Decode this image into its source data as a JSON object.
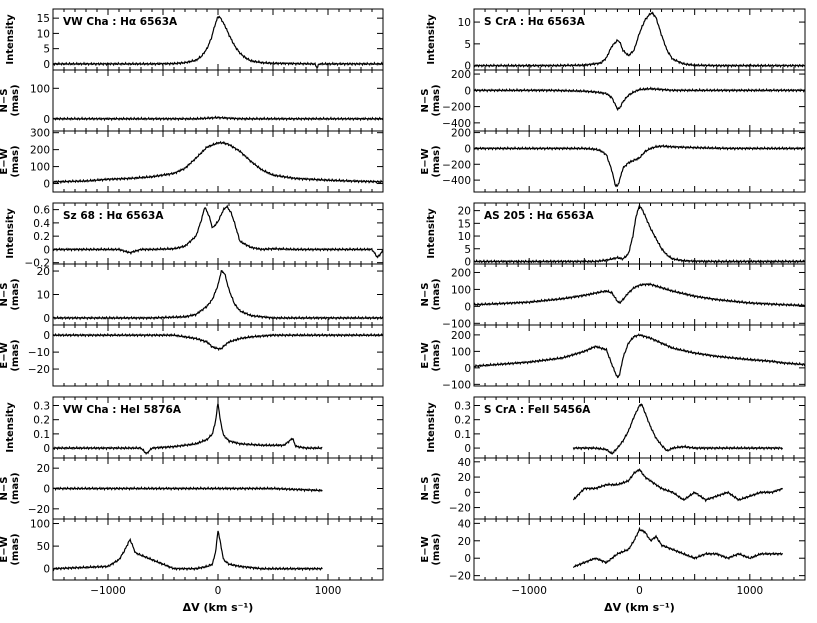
{
  "figure": {
    "xlabel": "ΔV (km s⁻¹)",
    "xlim": [
      -1500,
      1500
    ],
    "xticks": [
      -1000,
      0,
      1000
    ],
    "xtick_labels": [
      "−1000",
      "0",
      "1000"
    ]
  },
  "chart_data": [
    {
      "type": "line",
      "title": "VW Cha : Hα 6563A",
      "panels": [
        {
          "ylabel": "Intensity",
          "ylim": [
            -2,
            18
          ],
          "yticks": [
            0,
            5,
            10,
            15
          ],
          "x": [
            -1500,
            -1000,
            -600,
            -400,
            -300,
            -200,
            -150,
            -100,
            -60,
            -30,
            0,
            20,
            40,
            70,
            100,
            150,
            200,
            250,
            300,
            400,
            500,
            700,
            880,
            900,
            920,
            1000,
            1200,
            1500
          ],
          "y": [
            0,
            0,
            0,
            0.1,
            0.4,
            1.2,
            2.5,
            5,
            8.5,
            12.5,
            15.5,
            15.2,
            14,
            12,
            9.5,
            6,
            3.5,
            2,
            1,
            0.4,
            0.2,
            0.1,
            0,
            -1.2,
            0,
            0,
            0,
            0
          ]
        },
        {
          "ylabel": "N−S\n(mas)",
          "ylim": [
            -40,
            160
          ],
          "yticks": [
            0,
            100
          ],
          "x": [
            -1500,
            -1200,
            -800,
            -400,
            -200,
            0,
            200,
            400,
            800,
            1200,
            1500
          ],
          "y": [
            0,
            0,
            0,
            0,
            0,
            4,
            0,
            0,
            0,
            0,
            0
          ]
        },
        {
          "ylabel": "E−W\n(mas)",
          "ylim": [
            -50,
            310
          ],
          "yticks": [
            0,
            100,
            200,
            300
          ],
          "x": [
            -1500,
            -1200,
            -1000,
            -800,
            -600,
            -400,
            -300,
            -200,
            -100,
            0,
            50,
            100,
            200,
            300,
            400,
            500,
            700,
            1000,
            1200,
            1500
          ],
          "y": [
            10,
            15,
            25,
            30,
            40,
            60,
            90,
            150,
            215,
            240,
            240,
            230,
            190,
            130,
            80,
            50,
            30,
            20,
            15,
            10
          ]
        }
      ]
    },
    {
      "type": "line",
      "title": "S CrA : Hα 6563A",
      "panels": [
        {
          "ylabel": "Intensity",
          "ylim": [
            -1,
            13
          ],
          "yticks": [
            0,
            5,
            10
          ],
          "x": [
            -1500,
            -800,
            -500,
            -350,
            -300,
            -250,
            -200,
            -180,
            -150,
            -100,
            -50,
            0,
            50,
            100,
            120,
            150,
            200,
            250,
            300,
            400,
            500,
            700,
            1000,
            1500
          ],
          "y": [
            0,
            0,
            0.1,
            0.6,
            1.8,
            4.5,
            5.8,
            5.5,
            3.5,
            2.3,
            3.5,
            7.5,
            10.5,
            12,
            12,
            11,
            7,
            3.5,
            1.5,
            0.4,
            0.1,
            0,
            0,
            0
          ]
        },
        {
          "ylabel": "N−S\n(mas)",
          "ylim": [
            -500,
            250
          ],
          "yticks": [
            -400,
            -200,
            0,
            200
          ],
          "x": [
            -1500,
            -800,
            -500,
            -400,
            -300,
            -250,
            -200,
            -180,
            -150,
            -100,
            -50,
            0,
            100,
            200,
            300,
            400,
            600,
            800,
            1000,
            1500
          ],
          "y": [
            0,
            0,
            -10,
            -20,
            -40,
            -90,
            -230,
            -220,
            -140,
            -60,
            -20,
            10,
            20,
            10,
            0,
            0,
            0,
            0,
            0,
            0
          ]
        },
        {
          "ylabel": "E−W\n(mas)",
          "ylim": [
            -550,
            220
          ],
          "yticks": [
            -400,
            -200,
            0,
            200
          ],
          "x": [
            -1500,
            -800,
            -500,
            -400,
            -350,
            -300,
            -250,
            -220,
            -200,
            -180,
            -150,
            -100,
            -50,
            0,
            50,
            100,
            150,
            200,
            300,
            500,
            800,
            1000,
            1500
          ],
          "y": [
            0,
            0,
            0,
            -10,
            -30,
            -80,
            -280,
            -460,
            -480,
            -400,
            -250,
            -180,
            -150,
            -120,
            -40,
            0,
            20,
            30,
            20,
            10,
            0,
            0,
            0
          ]
        }
      ]
    },
    {
      "type": "line",
      "title": "Sz 68 : Hα 6563A",
      "panels": [
        {
          "ylabel": "Intensity",
          "ylim": [
            -0.22,
            0.7
          ],
          "yticks": [
            -0.2,
            0,
            0.2,
            0.4,
            0.6
          ],
          "x": [
            -1500,
            -1300,
            -1100,
            -900,
            -800,
            -700,
            -600,
            -400,
            -300,
            -200,
            -150,
            -120,
            -80,
            -50,
            0,
            50,
            80,
            120,
            150,
            200,
            300,
            400,
            500,
            700,
            900,
            1100,
            1300,
            1400,
            1450,
            1500
          ],
          "y": [
            0,
            0,
            0,
            0,
            -0.05,
            0,
            0,
            0.01,
            0.05,
            0.2,
            0.45,
            0.64,
            0.5,
            0.32,
            0.42,
            0.6,
            0.65,
            0.55,
            0.4,
            0.12,
            0.03,
            0,
            0.01,
            0,
            0,
            0,
            0,
            0,
            -0.12,
            -0.02
          ]
        },
        {
          "ylabel": "N−S\n(mas)",
          "ylim": [
            -3,
            23
          ],
          "yticks": [
            0,
            10,
            20
          ],
          "x": [
            -1500,
            -1000,
            -600,
            -300,
            -200,
            -100,
            -50,
            0,
            30,
            60,
            100,
            150,
            200,
            300,
            500,
            1000,
            1500
          ],
          "y": [
            0,
            0,
            0,
            0.5,
            1.5,
            5,
            8,
            14,
            20,
            19,
            12,
            6,
            3,
            1,
            0,
            0,
            0
          ]
        },
        {
          "ylabel": "E−W\n(mas)",
          "ylim": [
            -30,
            6
          ],
          "yticks": [
            -20,
            -10,
            0
          ],
          "x": [
            -1500,
            -1000,
            -600,
            -400,
            -300,
            -200,
            -100,
            -50,
            0,
            30,
            60,
            100,
            200,
            300,
            500,
            800,
            1000,
            1500
          ],
          "y": [
            0,
            0,
            0,
            0,
            -1,
            -2,
            -4,
            -7,
            -8,
            -8,
            -6,
            -4,
            -2,
            -1,
            0,
            0,
            0,
            0
          ]
        }
      ]
    },
    {
      "type": "line",
      "title": "AS 205 : Hα 6563A",
      "panels": [
        {
          "ylabel": "Intensity",
          "ylim": [
            -1,
            23
          ],
          "yticks": [
            0,
            5,
            10,
            15,
            20
          ],
          "x": [
            -1500,
            -800,
            -500,
            -400,
            -300,
            -200,
            -150,
            -100,
            -60,
            -30,
            0,
            30,
            60,
            100,
            150,
            200,
            250,
            300,
            400,
            500,
            700,
            1000,
            1500
          ],
          "y": [
            0,
            0,
            0,
            0,
            0.5,
            1.5,
            1,
            3,
            10,
            18,
            22,
            20,
            17,
            13,
            9,
            5,
            2.5,
            1,
            0.3,
            0.1,
            0,
            0,
            0
          ]
        },
        {
          "ylabel": "N−S\n(mas)",
          "ylim": [
            -110,
            250
          ],
          "yticks": [
            -100,
            0,
            100,
            200
          ],
          "x": [
            -1500,
            -1300,
            -1000,
            -700,
            -500,
            -350,
            -300,
            -250,
            -200,
            -180,
            -150,
            -100,
            -50,
            0,
            50,
            100,
            150,
            200,
            300,
            500,
            700,
            1000,
            1300,
            1500
          ],
          "y": [
            10,
            15,
            25,
            45,
            65,
            85,
            90,
            80,
            30,
            20,
            40,
            80,
            110,
            125,
            130,
            130,
            120,
            110,
            90,
            60,
            40,
            20,
            10,
            5
          ]
        },
        {
          "ylabel": "E−W\n(mas)",
          "ylim": [
            -110,
            260
          ],
          "yticks": [
            -100,
            0,
            100,
            200
          ],
          "x": [
            -1500,
            -1300,
            -1000,
            -700,
            -500,
            -400,
            -300,
            -250,
            -200,
            -180,
            -150,
            -100,
            -50,
            0,
            50,
            100,
            200,
            300,
            500,
            700,
            1000,
            1200,
            1300,
            1400,
            1500
          ],
          "y": [
            10,
            20,
            35,
            60,
            100,
            130,
            110,
            20,
            -60,
            -40,
            60,
            150,
            190,
            200,
            190,
            180,
            150,
            120,
            90,
            70,
            50,
            40,
            30,
            25,
            20
          ]
        }
      ]
    },
    {
      "type": "line",
      "title": "VW Cha : HeI 5876A",
      "panels": [
        {
          "ylabel": "Intensity",
          "ylim": [
            -0.07,
            0.36
          ],
          "yticks": [
            0,
            0.1,
            0.2,
            0.3
          ],
          "x": [
            -1500,
            -1300,
            -1000,
            -800,
            -700,
            -650,
            -600,
            -400,
            -200,
            -100,
            -50,
            -20,
            0,
            20,
            50,
            100,
            200,
            400,
            600,
            680,
            700,
            720,
            800,
            950
          ],
          "y": [
            0,
            0,
            0,
            0,
            0,
            -0.04,
            0,
            0.01,
            0.03,
            0.06,
            0.1,
            0.2,
            0.32,
            0.2,
            0.09,
            0.05,
            0.03,
            0.02,
            0.02,
            0.07,
            0.02,
            0.01,
            0,
            0
          ]
        },
        {
          "ylabel": "N−S\n(mas)",
          "ylim": [
            -30,
            30
          ],
          "yticks": [
            -20,
            0,
            20
          ],
          "x": [
            -1500,
            -1000,
            -500,
            0,
            500,
            950
          ],
          "y": [
            0,
            0,
            0,
            0,
            0,
            -2
          ]
        },
        {
          "ylabel": "E−W\n(mas)",
          "ylim": [
            -25,
            110
          ],
          "yticks": [
            0,
            50,
            100
          ],
          "x": [
            -1500,
            -1000,
            -900,
            -850,
            -800,
            -750,
            -700,
            -600,
            -500,
            -400,
            -300,
            -200,
            -100,
            -50,
            -20,
            0,
            20,
            50,
            100,
            200,
            400,
            600,
            800,
            950
          ],
          "y": [
            0,
            5,
            20,
            40,
            65,
            35,
            30,
            20,
            10,
            0,
            0,
            0,
            5,
            10,
            40,
            85,
            60,
            20,
            10,
            5,
            0,
            0,
            0,
            0
          ]
        }
      ]
    },
    {
      "type": "line",
      "title": "S CrA : FeII 5456A",
      "panels": [
        {
          "ylabel": "Intensity",
          "ylim": [
            -0.07,
            0.36
          ],
          "yticks": [
            0,
            0.1,
            0.2,
            0.3
          ],
          "x": [
            -600,
            -500,
            -400,
            -300,
            -250,
            -200,
            -150,
            -100,
            -50,
            0,
            20,
            50,
            100,
            150,
            200,
            250,
            300,
            400,
            500,
            600,
            800,
            1000,
            1200,
            1300
          ],
          "y": [
            0,
            0,
            0,
            -0.01,
            -0.04,
            0,
            0.05,
            0.12,
            0.22,
            0.3,
            0.31,
            0.25,
            0.15,
            0.07,
            0.02,
            -0.02,
            0,
            0.01,
            0,
            0,
            0,
            0,
            0,
            0
          ]
        },
        {
          "ylabel": "N−S\n(mas)",
          "ylim": [
            -35,
            45
          ],
          "yticks": [
            -20,
            0,
            20,
            40
          ],
          "x": [
            -600,
            -500,
            -400,
            -300,
            -200,
            -100,
            -50,
            0,
            50,
            100,
            200,
            300,
            400,
            500,
            600,
            700,
            800,
            900,
            1000,
            1100,
            1200,
            1300
          ],
          "y": [
            -10,
            5,
            5,
            10,
            10,
            15,
            25,
            30,
            20,
            15,
            5,
            0,
            -10,
            0,
            -10,
            -5,
            0,
            -10,
            -5,
            0,
            0,
            5
          ]
        },
        {
          "ylabel": "E−W\n(mas)",
          "ylim": [
            -25,
            45
          ],
          "yticks": [
            -20,
            0,
            20,
            40
          ],
          "x": [
            -600,
            -500,
            -400,
            -300,
            -200,
            -100,
            -50,
            0,
            50,
            100,
            150,
            200,
            300,
            400,
            500,
            600,
            700,
            800,
            900,
            1000,
            1100,
            1200,
            1300
          ],
          "y": [
            -10,
            -5,
            0,
            -5,
            5,
            10,
            20,
            33,
            30,
            20,
            25,
            15,
            10,
            5,
            0,
            5,
            5,
            0,
            5,
            0,
            5,
            5,
            5
          ]
        }
      ]
    }
  ]
}
